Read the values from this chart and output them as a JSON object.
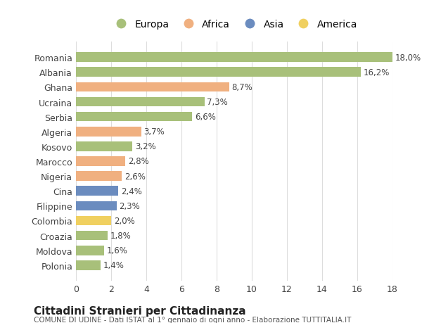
{
  "categories": [
    "Romania",
    "Albania",
    "Ghana",
    "Ucraina",
    "Serbia",
    "Algeria",
    "Kosovo",
    "Marocco",
    "Nigeria",
    "Cina",
    "Filippine",
    "Colombia",
    "Croazia",
    "Moldova",
    "Polonia"
  ],
  "values": [
    18.0,
    16.2,
    8.7,
    7.3,
    6.6,
    3.7,
    3.2,
    2.8,
    2.6,
    2.4,
    2.3,
    2.0,
    1.8,
    1.6,
    1.4
  ],
  "labels": [
    "18,0%",
    "16,2%",
    "8,7%",
    "7,3%",
    "6,6%",
    "3,7%",
    "3,2%",
    "2,8%",
    "2,6%",
    "2,4%",
    "2,3%",
    "2,0%",
    "1,8%",
    "1,6%",
    "1,4%"
  ],
  "continents": [
    "Europa",
    "Europa",
    "Africa",
    "Europa",
    "Europa",
    "Africa",
    "Europa",
    "Africa",
    "Africa",
    "Asia",
    "Asia",
    "America",
    "Europa",
    "Europa",
    "Europa"
  ],
  "colors": {
    "Europa": "#a8c07a",
    "Africa": "#f0b080",
    "Asia": "#6b8cbf",
    "America": "#f0d060"
  },
  "legend_order": [
    "Europa",
    "Africa",
    "Asia",
    "America"
  ],
  "title": "Cittadini Stranieri per Cittadinanza",
  "subtitle": "COMUNE DI UDINE - Dati ISTAT al 1° gennaio di ogni anno - Elaborazione TUTTITALIA.IT",
  "xlim": [
    0,
    18
  ],
  "xticks": [
    0,
    2,
    4,
    6,
    8,
    10,
    12,
    14,
    16,
    18
  ],
  "background_color": "#ffffff",
  "grid_color": "#dddddd",
  "text_color": "#444444",
  "bar_height": 0.65
}
